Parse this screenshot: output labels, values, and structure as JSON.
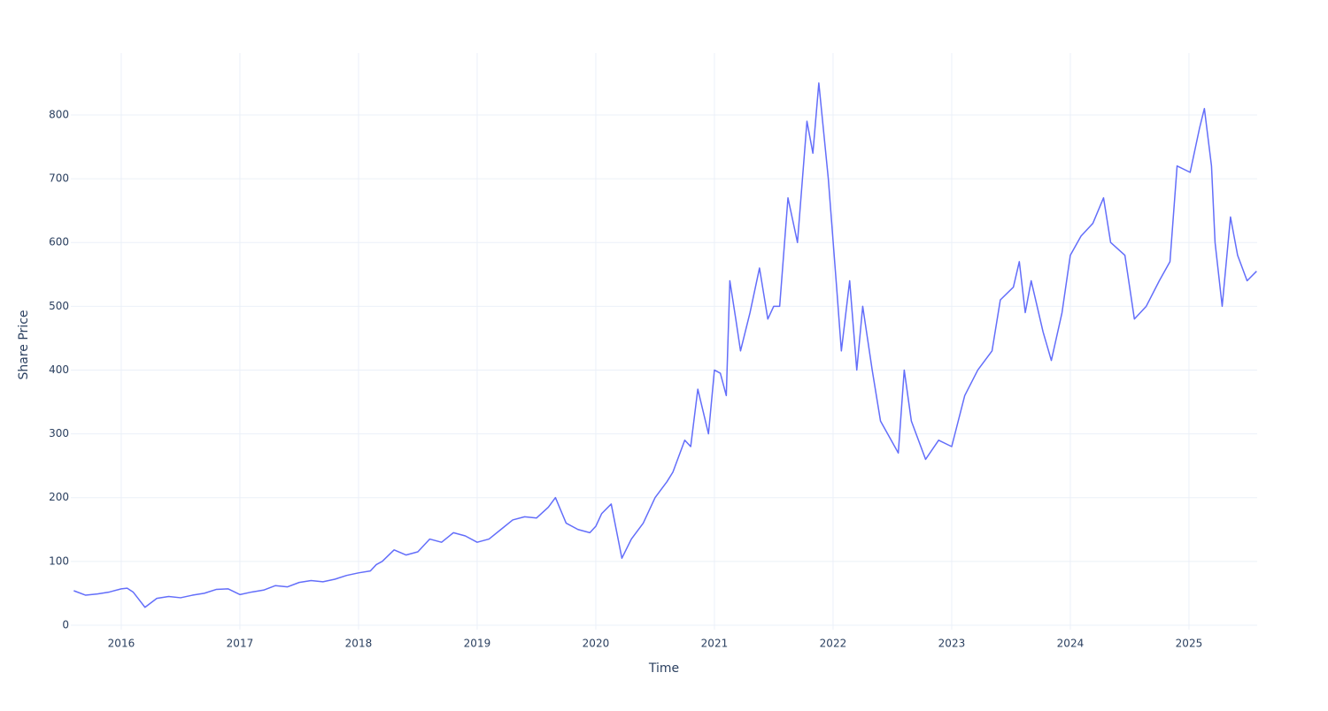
{
  "chart_data": {
    "type": "line",
    "x_label": "Time",
    "y_label": "Share Price",
    "xlim": [
      2015.575,
      2025.575
    ],
    "xticks": [
      2016,
      2017,
      2018,
      2019,
      2020,
      2021,
      2022,
      2023,
      2024,
      2025
    ],
    "ylim": [
      -7,
      897
    ],
    "yticks": [
      0,
      100,
      200,
      300,
      400,
      500,
      600,
      700,
      800
    ],
    "grid": true,
    "series": [
      {
        "name": "Share Price",
        "color": "#636efa",
        "x": [
          2015.6,
          2015.7,
          2015.8,
          2015.9,
          2016.0,
          2016.05,
          2016.1,
          2016.15,
          2016.2,
          2016.3,
          2016.4,
          2016.5,
          2016.6,
          2016.7,
          2016.8,
          2016.9,
          2017.0,
          2017.1,
          2017.2,
          2017.3,
          2017.4,
          2017.5,
          2017.6,
          2017.7,
          2017.8,
          2017.9,
          2018.0,
          2018.1,
          2018.15,
          2018.2,
          2018.3,
          2018.4,
          2018.5,
          2018.6,
          2018.7,
          2018.8,
          2018.9,
          2019.0,
          2019.1,
          2019.2,
          2019.3,
          2019.4,
          2019.5,
          2019.6,
          2019.66,
          2019.75,
          2019.85,
          2019.95,
          2020.0,
          2020.05,
          2020.13,
          2020.22,
          2020.3,
          2020.4,
          2020.5,
          2020.6,
          2020.65,
          2020.75,
          2020.8,
          2020.86,
          2020.95,
          2021.0,
          2021.05,
          2021.1,
          2021.13,
          2021.18,
          2021.22,
          2021.3,
          2021.38,
          2021.45,
          2021.5,
          2021.55,
          2021.62,
          2021.7,
          2021.78,
          2021.83,
          2021.88,
          2021.96,
          2022.03,
          2022.07,
          2022.14,
          2022.2,
          2022.25,
          2022.33,
          2022.4,
          2022.55,
          2022.6,
          2022.66,
          2022.78,
          2022.89,
          2023.0,
          2023.11,
          2023.22,
          2023.34,
          2023.41,
          2023.52,
          2023.57,
          2023.62,
          2023.67,
          2023.77,
          2023.84,
          2023.93,
          2024.0,
          2024.09,
          2024.19,
          2024.28,
          2024.34,
          2024.46,
          2024.54,
          2024.64,
          2024.75,
          2024.84,
          2024.9,
          2025.01,
          2025.09,
          2025.13,
          2025.19,
          2025.22,
          2025.28,
          2025.35,
          2025.41,
          2025.49,
          2025.57
        ],
        "values": [
          54,
          47,
          49,
          52,
          57,
          58,
          52,
          40,
          28,
          42,
          45,
          43,
          47,
          50,
          56,
          57,
          48,
          52,
          55,
          62,
          60,
          67,
          70,
          68,
          72,
          78,
          82,
          85,
          95,
          100,
          118,
          110,
          115,
          135,
          130,
          145,
          140,
          130,
          135,
          150,
          165,
          170,
          168,
          185,
          200,
          160,
          150,
          145,
          155,
          175,
          190,
          105,
          135,
          160,
          200,
          225,
          240,
          290,
          280,
          370,
          300,
          400,
          395,
          360,
          540,
          480,
          430,
          490,
          560,
          480,
          500,
          500,
          670,
          600,
          790,
          740,
          850,
          700,
          530,
          430,
          540,
          400,
          500,
          400,
          320,
          270,
          400,
          320,
          260,
          290,
          280,
          360,
          400,
          430,
          510,
          530,
          570,
          490,
          540,
          460,
          415,
          490,
          580,
          610,
          630,
          670,
          600,
          580,
          480,
          500,
          540,
          570,
          720,
          710,
          780,
          810,
          720,
          600,
          500,
          640,
          580,
          540,
          555
        ]
      }
    ]
  }
}
